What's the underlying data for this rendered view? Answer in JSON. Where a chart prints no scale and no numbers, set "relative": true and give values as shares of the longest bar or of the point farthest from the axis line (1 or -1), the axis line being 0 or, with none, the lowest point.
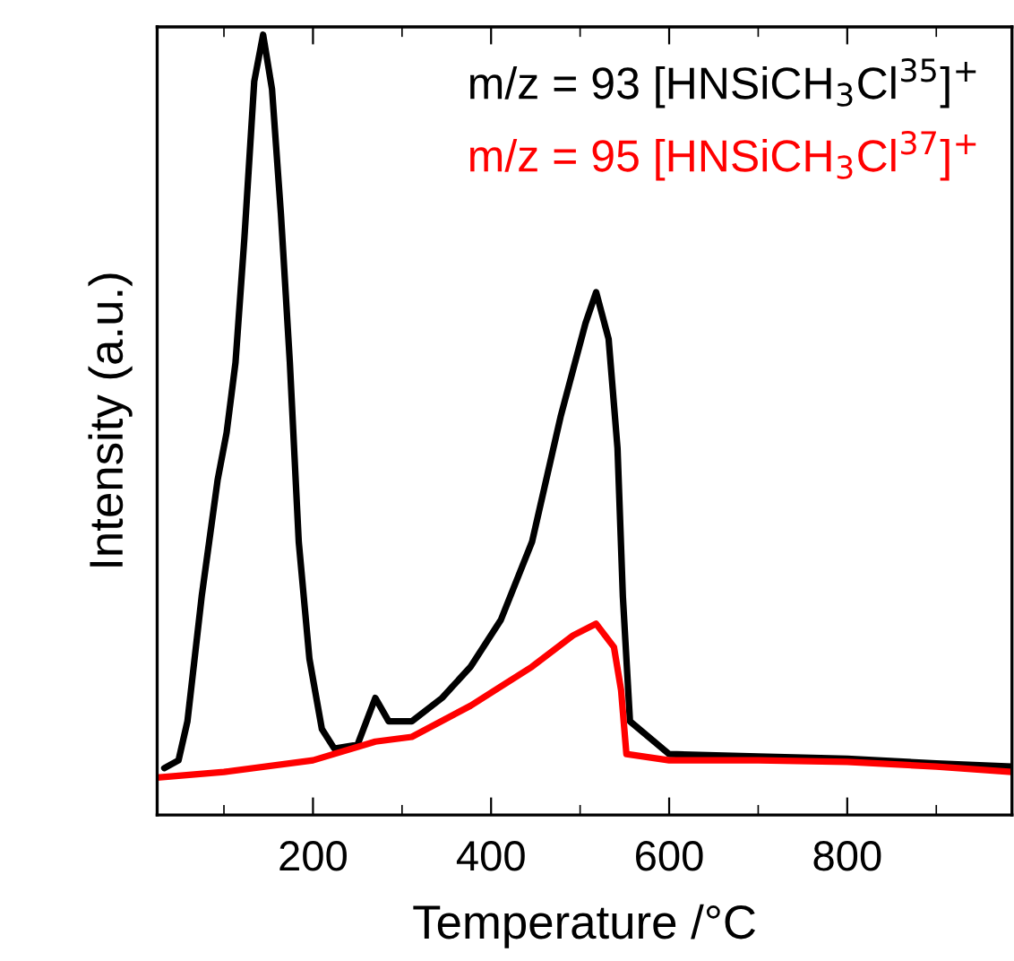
{
  "chart_data": {
    "type": "line",
    "xlabel": "Temperature /°C",
    "ylabel": "Intensity (a.u.)",
    "relative": true,
    "xlim": [
      25,
      985
    ],
    "xticks": [
      {
        "value": 100,
        "label": null
      },
      200,
      {
        "value": 300,
        "label": null
      },
      400,
      {
        "value": 500,
        "label": null
      },
      600,
      {
        "value": 700,
        "label": null
      },
      800,
      {
        "value": 900,
        "label": null
      }
    ],
    "legend": "top right",
    "grid": false,
    "series": [
      {
        "name": "m/z = 93 [HNSiCH$_{3}$Cl$^{35}$]$^{+}$",
        "color": "#000000",
        "x": [
          33,
          49,
          59,
          75,
          93,
          103,
          113,
          123,
          134,
          144,
          154,
          164,
          174,
          184,
          196,
          210,
          224,
          250,
          270,
          285,
          311,
          345,
          377,
          411,
          446,
          478,
          506,
          518,
          532,
          542,
          548,
          556,
          600,
          700,
          800,
          900,
          985
        ],
        "values": [
          0.06,
          0.07,
          0.12,
          0.28,
          0.43,
          0.49,
          0.58,
          0.74,
          0.94,
          1.0,
          0.93,
          0.77,
          0.58,
          0.35,
          0.2,
          0.11,
          0.085,
          0.09,
          0.15,
          0.12,
          0.12,
          0.15,
          0.19,
          0.25,
          0.35,
          0.51,
          0.63,
          0.67,
          0.61,
          0.47,
          0.28,
          0.12,
          0.078,
          0.075,
          0.072,
          0.066,
          0.062
        ]
      },
      {
        "name": "m/z = 95 [HNSiCH$_{3}$Cl$^{37}$]$^{+}$",
        "color": "#ff0000",
        "x": [
          25,
          100,
          200,
          270,
          311,
          377,
          446,
          492,
          518,
          538,
          546,
          552,
          600,
          700,
          800,
          900,
          985
        ],
        "values": [
          0.048,
          0.055,
          0.07,
          0.094,
          0.1,
          0.14,
          0.19,
          0.23,
          0.245,
          0.215,
          0.16,
          0.078,
          0.07,
          0.07,
          0.068,
          0.062,
          0.055
        ]
      }
    ]
  }
}
